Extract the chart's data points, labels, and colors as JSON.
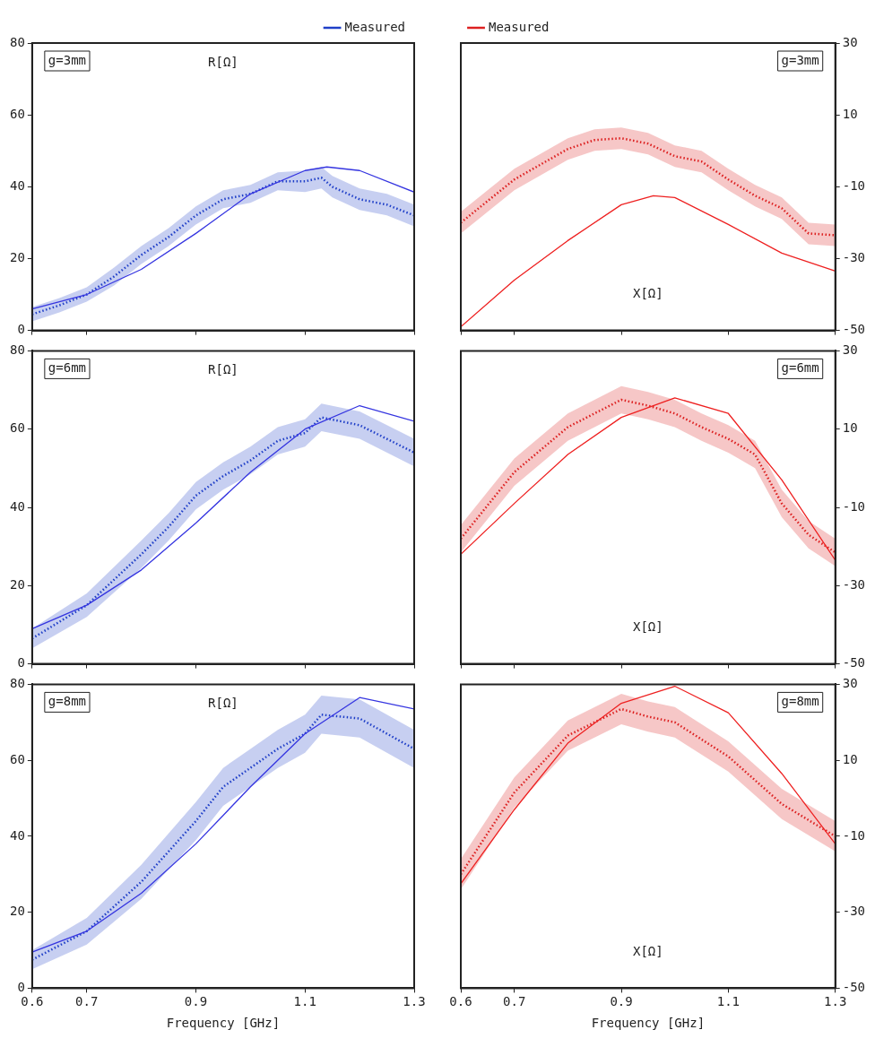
{
  "chart_data": [
    {
      "type": "line",
      "annotations": [
        "g=3mm",
        "R[Ω]"
      ],
      "xlim": [
        0.6,
        1.3
      ],
      "xticks": [
        0.6,
        0.7,
        0.9,
        1.1,
        1.3
      ],
      "ylim": [
        0,
        80
      ],
      "yticks": [
        0,
        20,
        40,
        60,
        80
      ],
      "tick_labels": "y",
      "legend": "top right",
      "series": [
        {
          "color": "#3535e0",
          "line_style": "solid",
          "x": [
            0.6,
            0.7,
            0.8,
            0.9,
            1.0,
            1.1,
            1.14,
            1.2,
            1.3
          ],
          "values": [
            6,
            10,
            17,
            27,
            38,
            44.5,
            45.5,
            44.5,
            38.5
          ]
        },
        {
          "name": "Measured",
          "color": "#1f3fc8",
          "line_style": "dotted",
          "x": [
            0.6,
            0.65,
            0.7,
            0.75,
            0.8,
            0.85,
            0.9,
            0.95,
            1.0,
            1.05,
            1.1,
            1.13,
            1.15,
            1.2,
            1.25,
            1.3
          ],
          "values": [
            4.5,
            7,
            10,
            15,
            21,
            26,
            32,
            36.5,
            38,
            41.5,
            41.5,
            42.5,
            40,
            36.5,
            35,
            32
          ],
          "lower": [
            2.5,
            5,
            8,
            12.5,
            18.5,
            23.5,
            29.5,
            34,
            35.5,
            39,
            38.5,
            39.5,
            37,
            33.5,
            32,
            29
          ],
          "upper": [
            6.5,
            9,
            12,
            17.5,
            23.5,
            28.5,
            34.5,
            39,
            40.5,
            44,
            44.5,
            45.5,
            43,
            39.5,
            38,
            35
          ]
        }
      ]
    },
    {
      "type": "line",
      "annotations": [
        "g=3mm",
        "X[Ω]"
      ],
      "xlim": [
        0.6,
        1.3
      ],
      "xticks": [
        0.6,
        0.7,
        0.9,
        1.1,
        1.3
      ],
      "ylim": [
        -50,
        30
      ],
      "yticks": [
        -50,
        -30,
        -10,
        10,
        30
      ],
      "tick_labels": "y",
      "legend": "top left",
      "series": [
        {
          "color": "#ee2020",
          "line_style": "solid",
          "x": [
            0.6,
            0.7,
            0.8,
            0.9,
            0.96,
            1.0,
            1.1,
            1.2,
            1.3
          ],
          "values": [
            -49,
            -36,
            -25,
            -15,
            -12.5,
            -13,
            -20.5,
            -28.5,
            -33.5
          ]
        },
        {
          "name": "Measured",
          "color": "#dd2020",
          "line_style": "dotted",
          "x": [
            0.6,
            0.7,
            0.8,
            0.85,
            0.9,
            0.95,
            1.0,
            1.05,
            1.1,
            1.15,
            1.2,
            1.25,
            1.3
          ],
          "values": [
            -20,
            -8,
            0.5,
            3,
            3.5,
            2,
            -1.5,
            -3,
            -8,
            -12.5,
            -16,
            -23,
            -23.5
          ],
          "lower": [
            -23,
            -11,
            -2.5,
            0,
            0.5,
            -1,
            -4.5,
            -6,
            -11,
            -15.5,
            -19,
            -26,
            -26.5
          ],
          "upper": [
            -17,
            -5,
            3.5,
            6,
            6.5,
            5,
            1.5,
            0,
            -5,
            -9.5,
            -13,
            -20,
            -20.5
          ]
        }
      ]
    },
    {
      "type": "line",
      "annotations": [
        "g=6mm",
        "R[Ω]"
      ],
      "xlim": [
        0.6,
        1.3
      ],
      "xticks": [
        0.6,
        0.7,
        0.9,
        1.1,
        1.3
      ],
      "ylim": [
        0,
        80
      ],
      "yticks": [
        0,
        20,
        40,
        60,
        80
      ],
      "tick_labels": "y",
      "series": [
        {
          "color": "#3535e0",
          "line_style": "solid",
          "x": [
            0.6,
            0.7,
            0.8,
            0.9,
            1.0,
            1.1,
            1.2,
            1.3
          ],
          "values": [
            9,
            15,
            24,
            36,
            49,
            60,
            66,
            62
          ]
        },
        {
          "color": "#1f3fc8",
          "line_style": "dotted",
          "x": [
            0.6,
            0.7,
            0.8,
            0.85,
            0.9,
            0.95,
            1.0,
            1.05,
            1.1,
            1.13,
            1.2,
            1.3
          ],
          "values": [
            6.5,
            15,
            28,
            35,
            43,
            48,
            52,
            57,
            59,
            63,
            61,
            54
          ],
          "lower": [
            4,
            12,
            24.5,
            31.5,
            39.5,
            44.5,
            48.5,
            53.5,
            55.5,
            59.5,
            57.5,
            50.5
          ],
          "upper": [
            9,
            18,
            31.5,
            38.5,
            46.5,
            51.5,
            55.5,
            60.5,
            62.5,
            66.5,
            64.5,
            57.5
          ]
        }
      ]
    },
    {
      "type": "line",
      "annotations": [
        "g=6mm",
        "X[Ω]"
      ],
      "xlim": [
        0.6,
        1.3
      ],
      "xticks": [
        0.6,
        0.7,
        0.9,
        1.1,
        1.3
      ],
      "ylim": [
        -50,
        30
      ],
      "yticks": [
        -50,
        -30,
        -10,
        10,
        30
      ],
      "tick_labels": "y",
      "series": [
        {
          "color": "#ee2020",
          "line_style": "solid",
          "x": [
            0.6,
            0.7,
            0.8,
            0.9,
            1.0,
            1.1,
            1.2,
            1.3
          ],
          "values": [
            -22,
            -9,
            3.5,
            13,
            18,
            14,
            -3,
            -23.5
          ]
        },
        {
          "color": "#dd2020",
          "line_style": "dotted",
          "x": [
            0.6,
            0.7,
            0.8,
            0.9,
            0.95,
            1.0,
            1.05,
            1.1,
            1.15,
            1.2,
            1.25,
            1.3
          ],
          "values": [
            -18,
            -1,
            10.5,
            17.5,
            16,
            14,
            10.5,
            7.5,
            3.5,
            -9,
            -17,
            -21.5
          ],
          "lower": [
            -21.5,
            -4.5,
            7,
            14,
            12.5,
            10.5,
            7,
            4,
            0,
            -12.5,
            -20.5,
            -25
          ],
          "upper": [
            -14.5,
            2.5,
            14,
            21,
            19.5,
            17.5,
            14,
            11,
            7,
            -5.5,
            -13.5,
            -18
          ]
        }
      ]
    },
    {
      "type": "line",
      "annotations": [
        "g=8mm",
        "R[Ω]"
      ],
      "xlabel": "Frequency [GHz]",
      "xlim": [
        0.6,
        1.3
      ],
      "xticks": [
        0.6,
        0.7,
        0.9,
        1.1,
        1.3
      ],
      "ylim": [
        0,
        80
      ],
      "yticks": [
        0,
        20,
        40,
        60,
        80
      ],
      "series": [
        {
          "color": "#3535e0",
          "line_style": "solid",
          "x": [
            0.6,
            0.7,
            0.8,
            0.9,
            1.0,
            1.1,
            1.2,
            1.3
          ],
          "values": [
            9.5,
            15,
            25,
            38,
            53,
            67,
            76.5,
            73.5
          ]
        },
        {
          "color": "#1f3fc8",
          "line_style": "dotted",
          "x": [
            0.6,
            0.7,
            0.8,
            0.9,
            0.95,
            1.0,
            1.05,
            1.1,
            1.13,
            1.2,
            1.3
          ],
          "values": [
            7.5,
            15,
            28,
            44,
            53,
            58,
            63,
            67,
            72,
            71,
            63
          ],
          "lower": [
            5,
            11.5,
            23.5,
            39,
            48,
            53,
            58,
            62,
            67,
            66,
            58
          ],
          "upper": [
            10,
            18.5,
            32.5,
            49,
            58,
            63,
            68,
            72,
            77,
            76,
            68
          ]
        }
      ]
    },
    {
      "type": "line",
      "annotations": [
        "g=8mm",
        "X[Ω]"
      ],
      "xlabel": "Frequency [GHz]",
      "xlim": [
        0.6,
        1.3
      ],
      "xticks": [
        0.6,
        0.7,
        0.9,
        1.1,
        1.3
      ],
      "ylim": [
        -50,
        30
      ],
      "yticks": [
        -50,
        -30,
        -10,
        10,
        30
      ],
      "series": [
        {
          "color": "#ee2020",
          "line_style": "solid",
          "x": [
            0.6,
            0.7,
            0.8,
            0.9,
            1.0,
            1.1,
            1.2,
            1.3
          ],
          "values": [
            -22.5,
            -3,
            14.5,
            25,
            29.5,
            22.5,
            6.5,
            -12
          ]
        },
        {
          "color": "#dd2020",
          "line_style": "dotted",
          "x": [
            0.6,
            0.7,
            0.8,
            0.9,
            0.95,
            1.0,
            1.1,
            1.2,
            1.3
          ],
          "values": [
            -20,
            1.5,
            16.5,
            23.5,
            21.5,
            20,
            11,
            -1.5,
            -10
          ],
          "lower": [
            -24,
            -2.5,
            12.5,
            19.5,
            17.5,
            16,
            7,
            -5.5,
            -14
          ],
          "upper": [
            -16,
            5.5,
            20.5,
            27.5,
            25.5,
            24,
            15,
            2.5,
            -6
          ]
        }
      ]
    }
  ]
}
